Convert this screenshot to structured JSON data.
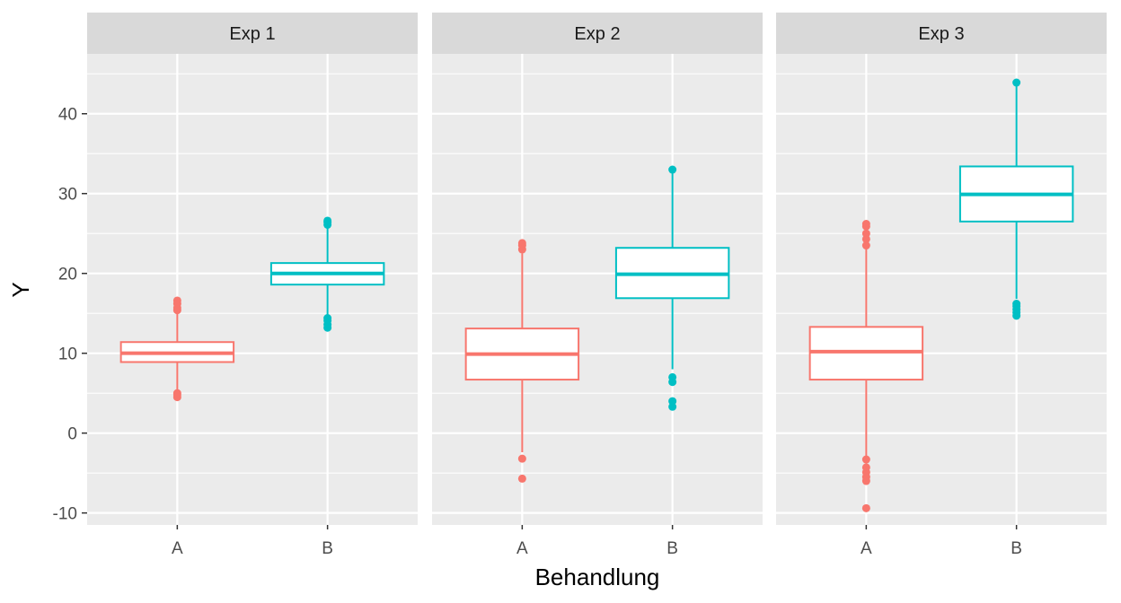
{
  "chart_data": {
    "type": "boxplot",
    "xlabel": "Behandlung",
    "ylabel": "Y",
    "ylim": [
      -11.5,
      47.5
    ],
    "y_ticks": [
      -10,
      0,
      10,
      20,
      30,
      40
    ],
    "grid": true,
    "categories": [
      "A",
      "B"
    ],
    "colors": {
      "A": "#F8766D",
      "B": "#00BFC4"
    },
    "facets": [
      {
        "label": "Exp 1",
        "boxes": [
          {
            "group": "A",
            "lower_whisker": 5.2,
            "q1": 8.9,
            "median": 10.0,
            "q3": 11.4,
            "upper_whisker": 15.1,
            "outliers": [
              4.5,
              4.8,
              5.0,
              15.4,
              15.7,
              16.2,
              16.6
            ]
          },
          {
            "group": "B",
            "lower_whisker": 14.6,
            "q1": 18.6,
            "median": 20.0,
            "q3": 21.3,
            "upper_whisker": 25.7,
            "outliers": [
              13.2,
              13.6,
              14.1,
              14.4,
              26.1,
              26.4,
              26.6
            ]
          }
        ]
      },
      {
        "label": "Exp 2",
        "boxes": [
          {
            "group": "A",
            "lower_whisker": -2.4,
            "q1": 6.7,
            "median": 9.9,
            "q3": 13.1,
            "upper_whisker": 22.5,
            "outliers": [
              -5.7,
              -3.2,
              23.0,
              23.5,
              23.8
            ]
          },
          {
            "group": "B",
            "lower_whisker": 8.0,
            "q1": 16.9,
            "median": 19.9,
            "q3": 23.2,
            "upper_whisker": 32.7,
            "outliers": [
              3.3,
              4.0,
              6.4,
              7.0,
              33.0
            ]
          }
        ]
      },
      {
        "label": "Exp 3",
        "boxes": [
          {
            "group": "A",
            "lower_whisker": -2.9,
            "q1": 6.7,
            "median": 10.2,
            "q3": 13.3,
            "upper_whisker": 23.1,
            "outliers": [
              -9.4,
              -6.0,
              -5.5,
              -4.9,
              -4.3,
              -3.3,
              23.5,
              24.3,
              25.0,
              25.9,
              26.2
            ]
          },
          {
            "group": "B",
            "lower_whisker": 16.8,
            "q1": 26.5,
            "median": 29.9,
            "q3": 33.4,
            "upper_whisker": 43.5,
            "outliers": [
              14.7,
              15.1,
              15.5,
              15.9,
              16.2,
              43.9
            ]
          }
        ]
      }
    ]
  }
}
